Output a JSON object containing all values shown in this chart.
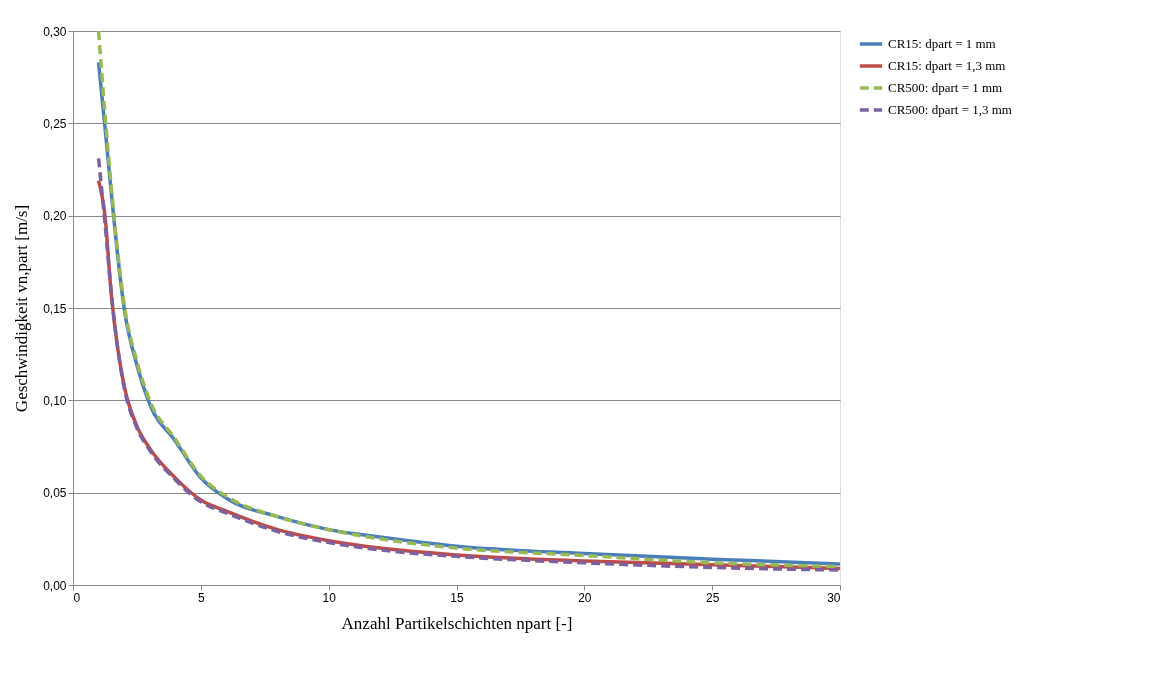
{
  "chart_data": {
    "type": "line",
    "xlabel": "Anzahl Partikelschichten npart [-]",
    "ylabel": "Geschwindigkeit vn,part [m/s]",
    "x": [
      1,
      1.25,
      1.5,
      1.75,
      2,
      2.5,
      3,
      4,
      5,
      6,
      8,
      10,
      12,
      15,
      20,
      25,
      30
    ],
    "series": [
      {
        "name": "CR15: dpart = 1 mm",
        "color": "#4a7ebb",
        "line_style": "solid",
        "values": [
          0.283,
          0.248,
          0.212,
          0.178,
          0.15,
          0.119,
          0.098,
          0.078,
          0.058,
          0.047,
          0.037,
          0.03,
          0.026,
          0.021,
          0.017,
          0.014,
          0.0114
        ]
      },
      {
        "name": "CR15: dpart = 1,3 mm",
        "color": "#be4b48",
        "line_style": "solid",
        "values": [
          0.219,
          0.2,
          0.157,
          0.128,
          0.108,
          0.086,
          0.074,
          0.058,
          0.046,
          0.04,
          0.03,
          0.024,
          0.02,
          0.0163,
          0.013,
          0.011,
          0.009
        ]
      },
      {
        "name": "CR500: dpart = 1 mm",
        "color": "#98b954",
        "line_style": "dashed",
        "values": [
          0.3,
          0.255,
          0.215,
          0.18,
          0.152,
          0.121,
          0.1,
          0.079,
          0.059,
          0.048,
          0.037,
          0.03,
          0.025,
          0.02,
          0.016,
          0.012,
          0.01
        ]
      },
      {
        "name": "CR500: dpart = 1,3 mm",
        "color": "#7d60a0",
        "line_style": "dashed",
        "values": [
          0.231,
          0.196,
          0.158,
          0.128,
          0.107,
          0.085,
          0.073,
          0.057,
          0.045,
          0.039,
          0.029,
          0.023,
          0.019,
          0.0155,
          0.012,
          0.0095,
          0.0081
        ]
      }
    ],
    "xlim": [
      0,
      30
    ],
    "xticks": [
      0,
      5,
      10,
      15,
      20,
      25,
      30
    ],
    "ylim": [
      0,
      0.3
    ],
    "yticks": [
      {
        "value": 0,
        "label": "0,00"
      },
      {
        "value": 0.05,
        "label": "0,05"
      },
      {
        "value": 0.1,
        "label": "0,10"
      },
      {
        "value": 0.15,
        "label": "0,15"
      },
      {
        "value": 0.2,
        "label": "0,20"
      },
      {
        "value": 0.25,
        "label": "0,25"
      },
      {
        "value": 0.3,
        "label": "0,30"
      }
    ],
    "grid": "y",
    "legend": "right",
    "marker": "none"
  }
}
